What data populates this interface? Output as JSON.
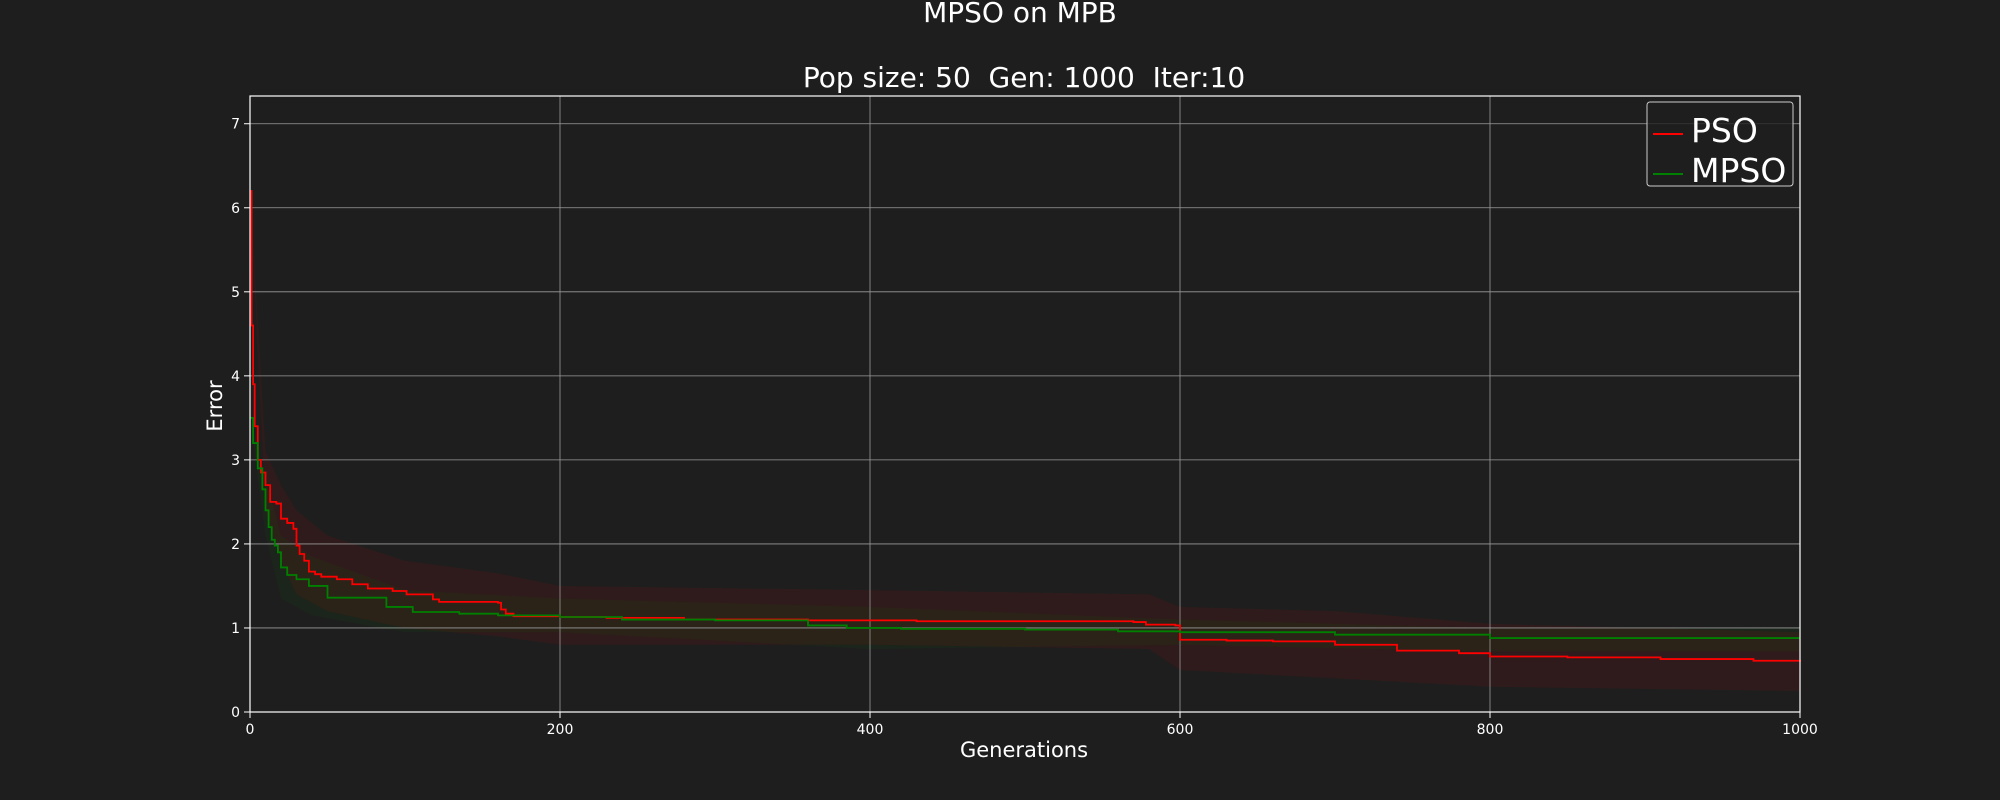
{
  "chart_data": {
    "type": "line",
    "title": "MPSO on MPB",
    "subtitle": "Pop size: 50  Gen: 1000  Iter:10",
    "xlabel": "Generations",
    "ylabel": "Error",
    "xlim": [
      0,
      1000
    ],
    "ylim": [
      0,
      7.33
    ],
    "xticks": [
      0,
      200,
      400,
      600,
      800,
      1000
    ],
    "yticks": [
      0,
      1,
      2,
      3,
      4,
      5,
      6,
      7
    ],
    "grid": true,
    "legend_position": "top-right",
    "background": "#1e1e1e",
    "series": [
      {
        "name": "PSO",
        "color": "#ff0000",
        "points": [
          [
            0,
            6.2
          ],
          [
            1,
            4.6
          ],
          [
            2,
            3.9
          ],
          [
            3,
            3.4
          ],
          [
            5,
            3.0
          ],
          [
            7,
            2.85
          ],
          [
            10,
            2.7
          ],
          [
            13,
            2.5
          ],
          [
            17,
            2.48
          ],
          [
            20,
            2.3
          ],
          [
            24,
            2.25
          ],
          [
            28,
            2.18
          ],
          [
            30,
            1.98
          ],
          [
            32,
            1.88
          ],
          [
            35,
            1.8
          ],
          [
            38,
            1.67
          ],
          [
            42,
            1.64
          ],
          [
            46,
            1.61
          ],
          [
            56,
            1.58
          ],
          [
            66,
            1.52
          ],
          [
            76,
            1.47
          ],
          [
            92,
            1.44
          ],
          [
            101,
            1.4
          ],
          [
            118,
            1.34
          ],
          [
            122,
            1.31
          ],
          [
            160,
            1.3
          ],
          [
            162,
            1.22
          ],
          [
            165,
            1.17
          ],
          [
            170,
            1.14
          ],
          [
            200,
            1.13
          ],
          [
            230,
            1.12
          ],
          [
            280,
            1.1
          ],
          [
            360,
            1.09
          ],
          [
            430,
            1.08
          ],
          [
            570,
            1.07
          ],
          [
            578,
            1.04
          ],
          [
            597,
            1.03
          ],
          [
            600,
            0.86
          ],
          [
            630,
            0.85
          ],
          [
            660,
            0.84
          ],
          [
            700,
            0.8
          ],
          [
            740,
            0.73
          ],
          [
            760,
            0.73
          ],
          [
            780,
            0.7
          ],
          [
            800,
            0.66
          ],
          [
            850,
            0.65
          ],
          [
            910,
            0.63
          ],
          [
            970,
            0.61
          ],
          [
            1000,
            0.6
          ]
        ],
        "band": [
          [
            0,
            6.2,
            6.2
          ],
          [
            10,
            2.4,
            3.1
          ],
          [
            20,
            1.8,
            2.7
          ],
          [
            30,
            1.4,
            2.4
          ],
          [
            50,
            1.2,
            2.1
          ],
          [
            100,
            1.0,
            1.8
          ],
          [
            160,
            0.9,
            1.65
          ],
          [
            200,
            0.8,
            1.5
          ],
          [
            400,
            0.8,
            1.45
          ],
          [
            580,
            0.75,
            1.4
          ],
          [
            600,
            0.5,
            1.25
          ],
          [
            700,
            0.4,
            1.2
          ],
          [
            800,
            0.3,
            1.05
          ],
          [
            1000,
            0.25,
            0.95
          ]
        ]
      },
      {
        "name": "MPSO",
        "color": "#008000",
        "points": [
          [
            0,
            3.5
          ],
          [
            2,
            3.2
          ],
          [
            5,
            2.9
          ],
          [
            8,
            2.65
          ],
          [
            10,
            2.4
          ],
          [
            12,
            2.2
          ],
          [
            14,
            2.05
          ],
          [
            16,
            1.98
          ],
          [
            18,
            1.9
          ],
          [
            20,
            1.72
          ],
          [
            24,
            1.63
          ],
          [
            30,
            1.58
          ],
          [
            38,
            1.5
          ],
          [
            50,
            1.36
          ],
          [
            88,
            1.25
          ],
          [
            105,
            1.19
          ],
          [
            135,
            1.17
          ],
          [
            160,
            1.15
          ],
          [
            200,
            1.13
          ],
          [
            240,
            1.1
          ],
          [
            300,
            1.09
          ],
          [
            360,
            1.03
          ],
          [
            385,
            1.0
          ],
          [
            420,
            0.99
          ],
          [
            500,
            0.98
          ],
          [
            560,
            0.96
          ],
          [
            600,
            0.95
          ],
          [
            700,
            0.92
          ],
          [
            800,
            0.88
          ],
          [
            900,
            0.88
          ],
          [
            1000,
            0.88
          ]
        ],
        "band": [
          [
            0,
            3.5,
            3.5
          ],
          [
            10,
            2.1,
            2.8
          ],
          [
            20,
            1.35,
            2.1
          ],
          [
            40,
            1.15,
            1.85
          ],
          [
            100,
            0.95,
            1.45
          ],
          [
            200,
            0.95,
            1.35
          ],
          [
            400,
            0.75,
            1.25
          ],
          [
            600,
            0.8,
            1.1
          ],
          [
            800,
            0.72,
            1.0
          ],
          [
            1000,
            0.72,
            1.0
          ]
        ]
      }
    ]
  }
}
